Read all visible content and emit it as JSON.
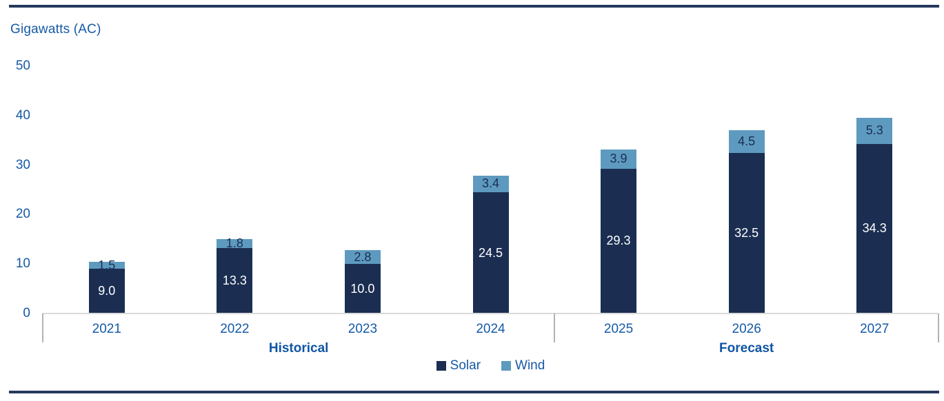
{
  "chart_data": {
    "type": "bar",
    "stacked": true,
    "title": "Gigawatts (AC)",
    "categories": [
      "2021",
      "2022",
      "2023",
      "2024",
      "2025",
      "2026",
      "2027"
    ],
    "series": [
      {
        "name": "Solar",
        "color": "#1b2e52",
        "label_color": "#ffffff",
        "values": [
          9.0,
          13.3,
          10.0,
          24.5,
          29.3,
          32.5,
          34.3
        ]
      },
      {
        "name": "Wind",
        "color": "#5e9abf",
        "label_color": "#1b2e52",
        "values": [
          1.5,
          1.8,
          2.8,
          3.4,
          3.9,
          4.5,
          5.3
        ]
      }
    ],
    "y_ticks": [
      0,
      10,
      20,
      30,
      40,
      50
    ],
    "ylim": [
      0,
      50
    ],
    "value_label_decimals": 1,
    "groups": [
      {
        "label": "Historical",
        "categories": [
          "2021",
          "2022",
          "2023",
          "2024"
        ]
      },
      {
        "label": "Forecast",
        "categories": [
          "2025",
          "2026",
          "2027"
        ]
      }
    ],
    "legend": [
      "Solar",
      "Wind"
    ],
    "legend_position": "bottom-center",
    "grid": false
  },
  "colors": {
    "text_blue": "#1659a6",
    "group_label_blue": "#0f55a4",
    "rule_navy": "#24395d",
    "axis_gray": "#d9d9d9",
    "boundary_tick_gray": "#b3b3b3"
  }
}
